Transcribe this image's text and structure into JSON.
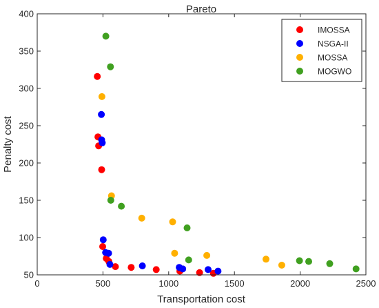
{
  "chart_data": {
    "type": "scatter",
    "title": "Pareto",
    "xlabel": "Transportation cost",
    "ylabel": "Penalty cost",
    "xlim": [
      0,
      2500
    ],
    "ylim": [
      50,
      400
    ],
    "xticks": [
      0,
      500,
      1000,
      1500,
      2000,
      2500
    ],
    "yticks": [
      50,
      100,
      150,
      200,
      250,
      300,
      350,
      400
    ],
    "xtick_labels": [
      "0",
      "500",
      "1000",
      "1500",
      "2000",
      "2500"
    ],
    "ytick_labels": [
      "50",
      "100",
      "150",
      "200",
      "250",
      "300",
      "350",
      "400"
    ],
    "grid": false,
    "legend_position": "top-right",
    "series": [
      {
        "name": "IMOSSA",
        "color": "#ff0000",
        "points": [
          [
            457,
            316
          ],
          [
            462,
            235
          ],
          [
            467,
            223
          ],
          [
            490,
            191
          ],
          [
            498,
            88
          ],
          [
            525,
            72
          ],
          [
            545,
            68
          ],
          [
            595,
            61
          ],
          [
            715,
            60
          ],
          [
            905,
            57
          ],
          [
            1085,
            55
          ],
          [
            1235,
            53
          ],
          [
            1340,
            52
          ]
        ]
      },
      {
        "name": "NSGA-II",
        "color": "#0000ff",
        "points": [
          [
            488,
            265
          ],
          [
            490,
            231
          ],
          [
            495,
            227
          ],
          [
            502,
            97
          ],
          [
            520,
            80
          ],
          [
            543,
            79
          ],
          [
            553,
            64
          ],
          [
            800,
            62
          ],
          [
            1080,
            60
          ],
          [
            1107,
            58
          ],
          [
            1300,
            57
          ],
          [
            1375,
            55
          ]
        ]
      },
      {
        "name": "MOSSA",
        "color": "#ffb000",
        "points": [
          [
            492,
            289
          ],
          [
            565,
            156
          ],
          [
            795,
            126
          ],
          [
            1030,
            121
          ],
          [
            1045,
            79
          ],
          [
            1290,
            76
          ],
          [
            1740,
            71
          ],
          [
            1860,
            63
          ]
        ]
      },
      {
        "name": "MOGWO",
        "color": "#40a020",
        "points": [
          [
            522,
            370
          ],
          [
            557,
            329
          ],
          [
            560,
            150
          ],
          [
            640,
            142
          ],
          [
            1140,
            113
          ],
          [
            1152,
            70
          ],
          [
            1995,
            69
          ],
          [
            2065,
            68
          ],
          [
            2225,
            65
          ],
          [
            2425,
            58
          ]
        ]
      }
    ]
  }
}
